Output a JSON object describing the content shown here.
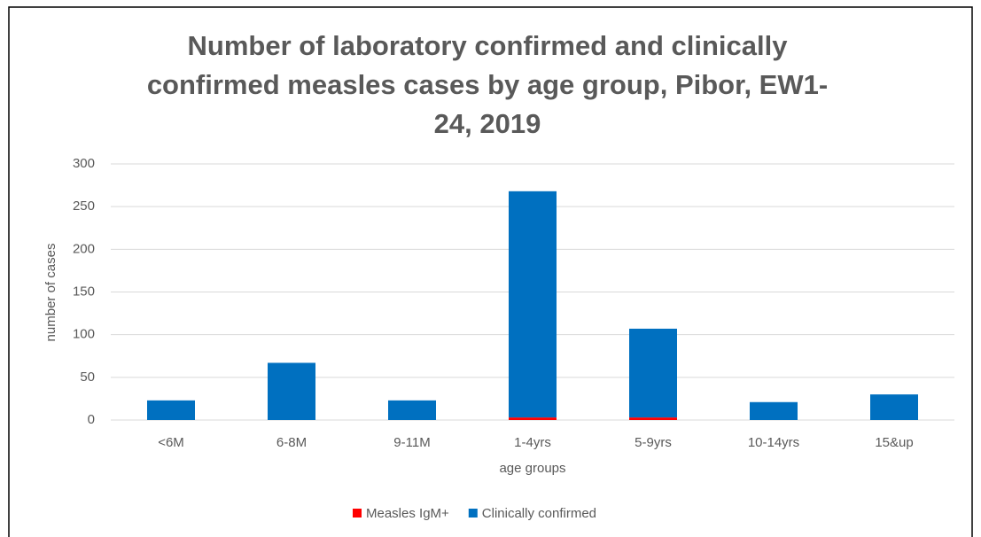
{
  "chart_data": {
    "type": "stacked_bar",
    "title": "Number of laboratory confirmed and clinically confirmed  measles cases by age group, Pibor, EW1-24, 2019",
    "x_label": "age groups",
    "y_label": "number of cases",
    "categories": [
      "<6M",
      "6-8M",
      "9-11M",
      "1-4yrs",
      "5-9yrs",
      "10-14yrs",
      "15&up"
    ],
    "series": [
      {
        "name": "Measles IgM+",
        "color": "#ff0000",
        "values": [
          0,
          0,
          0,
          3,
          3,
          0,
          0
        ]
      },
      {
        "name": "Clinically confirmed",
        "color": "#0070c0",
        "values": [
          23,
          67,
          23,
          265,
          104,
          21,
          30
        ]
      }
    ],
    "ylim": [
      0,
      300
    ],
    "yticks": [
      0,
      50,
      100,
      150,
      200,
      250,
      300
    ],
    "grid": true,
    "legend": "bottom"
  }
}
